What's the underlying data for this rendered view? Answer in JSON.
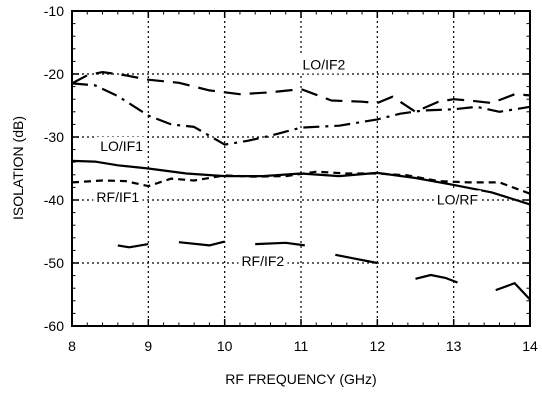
{
  "chart_data": {
    "type": "line",
    "xlabel": "RF FREQUENCY (GHz)",
    "ylabel": "ISOLATION (dB)",
    "xlim": [
      8,
      14
    ],
    "ylim": [
      -60,
      -10
    ],
    "xticks": [
      8,
      9,
      10,
      11,
      12,
      13,
      14
    ],
    "yticks": [
      -60,
      -50,
      -40,
      -30,
      -20,
      -10
    ],
    "x_tick_labels": [
      "8",
      "9",
      "10",
      "11",
      "12",
      "13",
      "14"
    ],
    "y_tick_labels": [
      "-60",
      "-50",
      "-40",
      "-30",
      "-20",
      "-10"
    ],
    "grid": "dotted",
    "annotations": [
      {
        "text": "LO/IF2",
        "x": 11.3,
        "y": -19.3
      },
      {
        "text": "LO/IF1",
        "x": 8.65,
        "y": -32.2
      },
      {
        "text": "RF/IF1",
        "x": 8.6,
        "y": -40.3
      },
      {
        "text": "LO/RF",
        "x": 13.05,
        "y": -40.7
      },
      {
        "text": "RF/IF2",
        "x": 10.5,
        "y": -50.5
      }
    ],
    "series": [
      {
        "name": "LO/IF2",
        "dash": "long-dash",
        "x": [
          8,
          8.2,
          8.4,
          8.7,
          9,
          9.4,
          9.8,
          10.2,
          10.6,
          11,
          11.4,
          11.8,
          12,
          12.2,
          12.5,
          12.8,
          13,
          13.2,
          13.5,
          13.8,
          14
        ],
        "y": [
          -21.5,
          -20.2,
          -19.7,
          -20.2,
          -20.9,
          -21.4,
          -22.6,
          -23.2,
          -22.9,
          -22.4,
          -24.2,
          -24.4,
          -24.6,
          -23.6,
          -26,
          -24.4,
          -24,
          -24.2,
          -24.6,
          -23.2,
          -23.4
        ]
      },
      {
        "name": "LO/IF1",
        "dash": "dash-dot",
        "x": [
          8,
          8.3,
          8.6,
          9,
          9.3,
          9.6,
          10,
          10.3,
          10.6,
          11,
          11.5,
          12,
          12.3,
          12.6,
          13,
          13.3,
          13.6,
          14
        ],
        "y": [
          -21.5,
          -21.8,
          -23.5,
          -26.6,
          -28,
          -28.4,
          -31.2,
          -30.6,
          -29.8,
          -28.5,
          -28.2,
          -27.2,
          -26.3,
          -25.8,
          -25.6,
          -25.2,
          -26,
          -25.2
        ]
      },
      {
        "name": "LO/RF",
        "dash": "solid",
        "x": [
          8,
          8.3,
          8.6,
          9,
          9.5,
          10,
          10.5,
          11,
          11.5,
          12,
          12.5,
          13,
          13.5,
          14
        ],
        "y": [
          -33.8,
          -33.9,
          -34.5,
          -35,
          -35.8,
          -36.2,
          -36.2,
          -35.8,
          -36.2,
          -35.7,
          -36.5,
          -37.6,
          -38.8,
          -40.7
        ]
      },
      {
        "name": "RF/IF1",
        "dash": "short-dash",
        "x": [
          8,
          8.4,
          8.7,
          9,
          9.3,
          9.6,
          10,
          10.4,
          10.8,
          11.2,
          11.6,
          12,
          12.4,
          12.8,
          13.2,
          13.6,
          14
        ],
        "y": [
          -37.2,
          -36.9,
          -37,
          -37.8,
          -36.6,
          -36.9,
          -36.1,
          -36.3,
          -36.2,
          -35.5,
          -35.8,
          -35.8,
          -36.1,
          -37,
          -37.2,
          -37.2,
          -39
        ]
      },
      {
        "name": "RF/IF2",
        "dash": "broken-solid",
        "segments": [
          {
            "x": [
              8.6,
              8.75,
              9.0
            ],
            "y": [
              -47.2,
              -47.5,
              -47.0
            ]
          },
          {
            "x": [
              9.4,
              9.8,
              10.0
            ],
            "y": [
              -46.7,
              -47.2,
              -46.6
            ]
          },
          {
            "x": [
              10.4,
              10.8,
              11.05
            ],
            "y": [
              -47.0,
              -46.8,
              -47.2
            ]
          },
          {
            "x": [
              11.45,
              11.7,
              12.0
            ],
            "y": [
              -48.7,
              -49.3,
              -50.0
            ]
          },
          {
            "x": [
              12.5,
              12.7,
              12.9,
              13.05
            ],
            "y": [
              -52.5,
              -51.9,
              -52.4,
              -53.1
            ]
          },
          {
            "x": [
              13.55,
              13.8,
              14.0
            ],
            "y": [
              -54.3,
              -53.2,
              -55.8
            ]
          }
        ]
      }
    ]
  }
}
